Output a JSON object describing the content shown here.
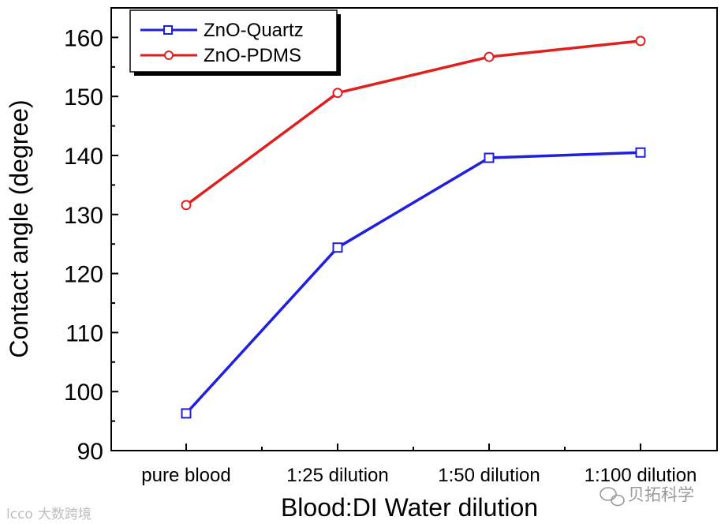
{
  "chart_data": {
    "type": "line",
    "title": "",
    "xlabel": "Blood:DI Water dilution",
    "ylabel": "Contact angle (degree)",
    "categories": [
      "pure blood",
      "1:25 dilution",
      "1:50 dilution",
      "1:100 dilution"
    ],
    "ylim": [
      90,
      165
    ],
    "yticks": [
      90,
      100,
      110,
      120,
      130,
      140,
      150,
      160
    ],
    "grid": false,
    "legend_position": "top-left",
    "series": [
      {
        "name": "ZnO-Quartz",
        "color": "#1f1fe0",
        "marker": "square",
        "values": [
          96.3,
          124.4,
          139.6,
          140.5
        ]
      },
      {
        "name": "ZnO-PDMS",
        "color": "#e01f1f",
        "marker": "circle",
        "values": [
          131.6,
          150.6,
          156.7,
          159.4
        ]
      }
    ]
  },
  "watermarks": {
    "bottom_left": "大数跨境",
    "bottom_left_logo": "lcco",
    "bottom_right": "贝拓科学"
  }
}
